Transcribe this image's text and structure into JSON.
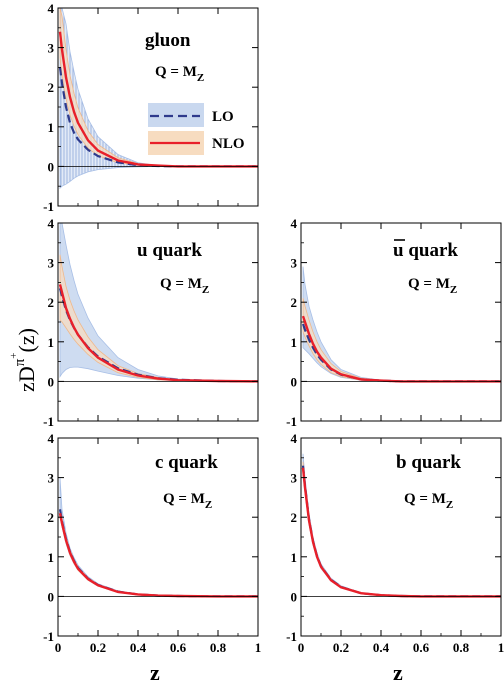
{
  "figure": {
    "xlabel": "z",
    "ylabel_main": "zD",
    "ylabel_sup_pi": "π",
    "ylabel_sup_plus": "+",
    "ylabel_arg": "(z)"
  },
  "legend": {
    "lo_label": "LO",
    "nlo_label": "NLO"
  },
  "colors": {
    "lo_band_fill": "#c9d8ef",
    "lo_band_stroke": "#a8bfe6",
    "lo_line": "#2e3a8c",
    "nlo_band_fill": "#f7dcc0",
    "nlo_band_stroke": "#f0b88a",
    "nlo_line": "#e8202a"
  },
  "chart_data": [
    {
      "id": "gluon",
      "type": "line",
      "title": "gluon",
      "scale_label": "Q = M",
      "scale_sub": "Z",
      "xlim": [
        0,
        1
      ],
      "ylim": [
        -1,
        4
      ],
      "xticks": [
        "0",
        "0.2",
        "0.4",
        "0.6",
        "0.8",
        "1"
      ],
      "yticks": [
        "-1",
        "0",
        "1",
        "2",
        "3",
        "4"
      ],
      "show_xticklabels": false,
      "has_legend": true,
      "series": [
        {
          "name": "LO",
          "x": [
            0.01,
            0.02,
            0.04,
            0.06,
            0.08,
            0.1,
            0.15,
            0.2,
            0.3,
            0.4,
            0.5,
            0.6,
            0.8,
            1.0
          ],
          "y": [
            2.5,
            2.1,
            1.5,
            1.1,
            0.85,
            0.68,
            0.42,
            0.26,
            0.1,
            0.03,
            0.01,
            0.0,
            0.0,
            0.0
          ],
          "band_upper": [
            4.0,
            4.0,
            3.6,
            2.9,
            2.4,
            1.95,
            1.2,
            0.75,
            0.3,
            0.09,
            0.02,
            0.01,
            0.0,
            0.0
          ],
          "band_lower": [
            -0.55,
            -0.5,
            -0.45,
            -0.38,
            -0.3,
            -0.24,
            -0.14,
            -0.08,
            -0.03,
            -0.01,
            0.0,
            0.0,
            0.0,
            0.0
          ]
        },
        {
          "name": "NLO",
          "x": [
            0.01,
            0.02,
            0.04,
            0.06,
            0.08,
            0.1,
            0.15,
            0.2,
            0.3,
            0.4,
            0.5,
            0.6,
            0.8,
            1.0
          ],
          "y": [
            3.4,
            2.95,
            2.25,
            1.75,
            1.38,
            1.1,
            0.66,
            0.4,
            0.15,
            0.05,
            0.02,
            0.0,
            0.0,
            0.0
          ],
          "band_upper": [
            4.0,
            3.8,
            2.95,
            2.3,
            1.85,
            1.48,
            0.9,
            0.55,
            0.22,
            0.07,
            0.02,
            0.01,
            0.0,
            0.0
          ],
          "band_lower": [
            2.75,
            2.3,
            1.7,
            1.3,
            1.02,
            0.8,
            0.46,
            0.27,
            0.09,
            0.03,
            0.01,
            0.0,
            0.0,
            0.0
          ]
        }
      ]
    },
    {
      "id": "u",
      "type": "line",
      "title": "u quark",
      "scale_label": "Q = M",
      "scale_sub": "Z",
      "xlim": [
        0,
        1
      ],
      "ylim": [
        -1,
        4
      ],
      "xticks": [
        "0",
        "0.2",
        "0.4",
        "0.6",
        "0.8",
        "1"
      ],
      "yticks": [
        "-1",
        "0",
        "1",
        "2",
        "3",
        "4"
      ],
      "show_xticklabels": false,
      "has_legend": false,
      "series": [
        {
          "name": "LO",
          "x": [
            0.01,
            0.02,
            0.04,
            0.06,
            0.08,
            0.1,
            0.15,
            0.2,
            0.3,
            0.4,
            0.5,
            0.6,
            0.8,
            1.0
          ],
          "y": [
            2.35,
            2.15,
            1.8,
            1.55,
            1.35,
            1.18,
            0.86,
            0.63,
            0.33,
            0.17,
            0.08,
            0.04,
            0.01,
            0.0
          ],
          "band_upper": [
            4.0,
            4.0,
            3.45,
            2.95,
            2.55,
            2.2,
            1.6,
            1.15,
            0.6,
            0.3,
            0.14,
            0.06,
            0.01,
            0.0
          ],
          "band_lower": [
            0.12,
            0.2,
            0.3,
            0.35,
            0.36,
            0.36,
            0.32,
            0.26,
            0.15,
            0.08,
            0.04,
            0.02,
            0.0,
            0.0
          ]
        },
        {
          "name": "NLO",
          "x": [
            0.01,
            0.02,
            0.04,
            0.06,
            0.08,
            0.1,
            0.15,
            0.2,
            0.3,
            0.4,
            0.5,
            0.6,
            0.8,
            1.0
          ],
          "y": [
            2.45,
            2.25,
            1.85,
            1.58,
            1.36,
            1.18,
            0.84,
            0.6,
            0.3,
            0.15,
            0.07,
            0.03,
            0.01,
            0.0
          ],
          "band_upper": [
            3.2,
            2.9,
            2.4,
            2.05,
            1.78,
            1.55,
            1.12,
            0.8,
            0.4,
            0.2,
            0.1,
            0.04,
            0.01,
            0.0
          ],
          "band_lower": [
            1.55,
            1.5,
            1.35,
            1.2,
            1.06,
            0.94,
            0.68,
            0.48,
            0.22,
            0.1,
            0.04,
            0.02,
            0.0,
            0.0
          ]
        }
      ]
    },
    {
      "id": "ubar",
      "type": "line",
      "title": "u quark",
      "title_bar": true,
      "scale_label": "Q = M",
      "scale_sub": "Z",
      "xlim": [
        0,
        1
      ],
      "ylim": [
        -1,
        4
      ],
      "xticks": [
        "0",
        "0.2",
        "0.4",
        "0.6",
        "0.8",
        "1"
      ],
      "yticks": [
        "-1",
        "0",
        "1",
        "2",
        "3",
        "4"
      ],
      "show_xticklabels": false,
      "has_legend": false,
      "series": [
        {
          "name": "LO",
          "x": [
            0.01,
            0.02,
            0.04,
            0.06,
            0.08,
            0.1,
            0.15,
            0.2,
            0.3,
            0.4,
            0.5,
            0.6,
            0.8,
            1.0
          ],
          "y": [
            1.45,
            1.3,
            1.05,
            0.85,
            0.68,
            0.55,
            0.3,
            0.17,
            0.05,
            0.02,
            0.0,
            0.0,
            0.0,
            0.0
          ],
          "band_upper": [
            2.9,
            2.45,
            1.9,
            1.55,
            1.25,
            1.0,
            0.55,
            0.3,
            0.1,
            0.03,
            0.01,
            0.0,
            0.0,
            0.0
          ],
          "band_lower": [
            0.85,
            0.8,
            0.7,
            0.58,
            0.47,
            0.37,
            0.2,
            0.1,
            0.03,
            0.01,
            0.0,
            0.0,
            0.0,
            0.0
          ]
        },
        {
          "name": "NLO",
          "x": [
            0.01,
            0.02,
            0.04,
            0.06,
            0.08,
            0.1,
            0.15,
            0.2,
            0.3,
            0.4,
            0.5,
            0.6,
            0.8,
            1.0
          ],
          "y": [
            1.65,
            1.5,
            1.2,
            0.95,
            0.75,
            0.6,
            0.32,
            0.18,
            0.05,
            0.02,
            0.0,
            0.0,
            0.0,
            0.0
          ],
          "band_upper": [
            2.1,
            1.9,
            1.55,
            1.25,
            1.0,
            0.8,
            0.45,
            0.25,
            0.08,
            0.02,
            0.01,
            0.0,
            0.0,
            0.0
          ],
          "band_lower": [
            1.25,
            1.12,
            0.9,
            0.7,
            0.55,
            0.43,
            0.22,
            0.12,
            0.03,
            0.01,
            0.0,
            0.0,
            0.0,
            0.0
          ]
        }
      ]
    },
    {
      "id": "c",
      "type": "line",
      "title": "c quark",
      "scale_label": "Q = M",
      "scale_sub": "Z",
      "xlim": [
        0,
        1
      ],
      "ylim": [
        -1,
        4
      ],
      "xticks": [
        "0",
        "0.2",
        "0.4",
        "0.6",
        "0.8",
        "1"
      ],
      "yticks": [
        "-1",
        "0",
        "1",
        "2",
        "3",
        "4"
      ],
      "show_xticklabels": true,
      "has_legend": false,
      "series": [
        {
          "name": "LO",
          "x": [
            0.01,
            0.02,
            0.04,
            0.06,
            0.08,
            0.1,
            0.15,
            0.2,
            0.3,
            0.4,
            0.5,
            0.6,
            0.8,
            1.0
          ],
          "y": [
            2.2,
            1.9,
            1.45,
            1.12,
            0.9,
            0.72,
            0.45,
            0.29,
            0.12,
            0.05,
            0.02,
            0.01,
            0.0,
            0.0
          ],
          "band_upper": [
            3.0,
            2.2,
            1.6,
            1.22,
            0.98,
            0.79,
            0.5,
            0.32,
            0.14,
            0.06,
            0.03,
            0.01,
            0.0,
            0.0
          ],
          "band_lower": [
            2.0,
            1.75,
            1.33,
            1.03,
            0.82,
            0.66,
            0.41,
            0.26,
            0.1,
            0.04,
            0.02,
            0.01,
            0.0,
            0.0
          ]
        },
        {
          "name": "NLO",
          "x": [
            0.01,
            0.02,
            0.04,
            0.06,
            0.08,
            0.1,
            0.15,
            0.2,
            0.3,
            0.4,
            0.5,
            0.6,
            0.8,
            1.0
          ],
          "y": [
            2.1,
            1.85,
            1.42,
            1.1,
            0.88,
            0.7,
            0.44,
            0.28,
            0.11,
            0.05,
            0.02,
            0.01,
            0.0,
            0.0
          ],
          "band_upper": [
            2.2,
            1.95,
            1.5,
            1.16,
            0.93,
            0.74,
            0.47,
            0.3,
            0.12,
            0.05,
            0.02,
            0.01,
            0.0,
            0.0
          ],
          "band_lower": [
            2.0,
            1.76,
            1.35,
            1.04,
            0.83,
            0.66,
            0.41,
            0.26,
            0.1,
            0.04,
            0.02,
            0.01,
            0.0,
            0.0
          ]
        }
      ]
    },
    {
      "id": "b",
      "type": "line",
      "title": "b quark",
      "scale_label": "Q = M",
      "scale_sub": "Z",
      "xlim": [
        0,
        1
      ],
      "ylim": [
        -1,
        4
      ],
      "xticks": [
        "0",
        "0.2",
        "0.4",
        "0.6",
        "0.8",
        "1"
      ],
      "yticks": [
        "-1",
        "0",
        "1",
        "2",
        "3",
        "4"
      ],
      "show_xticklabels": true,
      "has_legend": false,
      "series": [
        {
          "name": "LO",
          "x": [
            0.01,
            0.02,
            0.04,
            0.06,
            0.08,
            0.1,
            0.15,
            0.2,
            0.3,
            0.4,
            0.5,
            0.6,
            0.8,
            1.0
          ],
          "y": [
            3.3,
            2.8,
            1.95,
            1.4,
            1.02,
            0.76,
            0.42,
            0.24,
            0.08,
            0.03,
            0.01,
            0.0,
            0.0,
            0.0
          ],
          "band_upper": [
            3.6,
            3.0,
            2.1,
            1.5,
            1.1,
            0.82,
            0.46,
            0.27,
            0.09,
            0.03,
            0.01,
            0.0,
            0.0,
            0.0
          ],
          "band_lower": [
            3.1,
            2.6,
            1.82,
            1.3,
            0.95,
            0.7,
            0.39,
            0.22,
            0.07,
            0.02,
            0.01,
            0.0,
            0.0,
            0.0
          ]
        },
        {
          "name": "NLO",
          "x": [
            0.01,
            0.02,
            0.04,
            0.06,
            0.08,
            0.1,
            0.15,
            0.2,
            0.3,
            0.4,
            0.5,
            0.6,
            0.8,
            1.0
          ],
          "y": [
            3.25,
            2.75,
            1.92,
            1.38,
            1.0,
            0.75,
            0.41,
            0.23,
            0.08,
            0.03,
            0.01,
            0.0,
            0.0,
            0.0
          ],
          "band_upper": [
            3.4,
            2.88,
            2.0,
            1.44,
            1.05,
            0.78,
            0.43,
            0.25,
            0.08,
            0.03,
            0.01,
            0.0,
            0.0,
            0.0
          ],
          "band_lower": [
            3.1,
            2.62,
            1.84,
            1.32,
            0.96,
            0.72,
            0.39,
            0.22,
            0.07,
            0.02,
            0.01,
            0.0,
            0.0,
            0.0
          ]
        }
      ]
    }
  ]
}
